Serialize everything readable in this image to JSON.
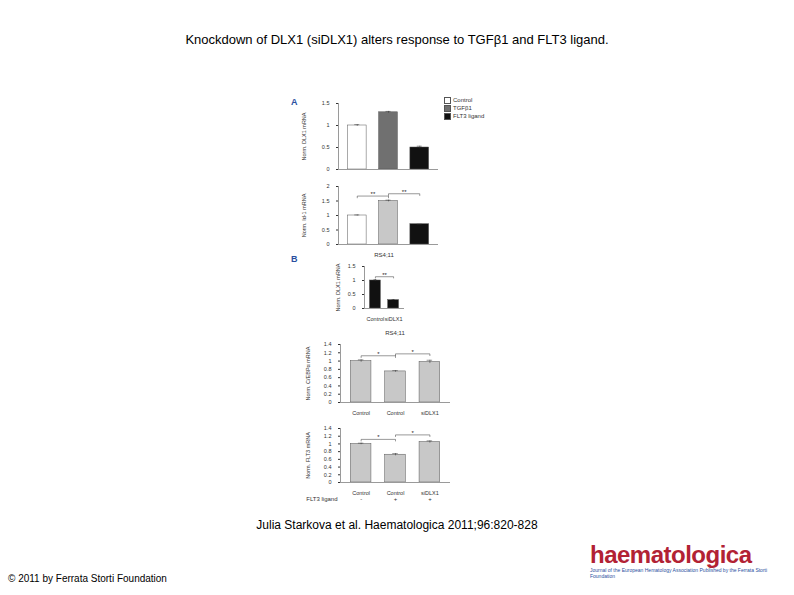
{
  "title": "Knockdown of DLX1 (siDLX1) alters response to TGFβ1 and FLT3 ligand.",
  "citation": "Julia Starkova et al. Haematologica 2011;96:820-828",
  "copyright": "© 2011 by Ferrata Storti Foundation",
  "logo": {
    "name": "haematologica",
    "tagline": "Journal of the European Hematology Association Published by the Ferrata Storti Foundation"
  },
  "chart_data": [
    {
      "type": "bar",
      "panel": "A",
      "y_label": "Norm. DLX1 mRNA",
      "categories": [
        "Control",
        "TGFβ1",
        "FLT3 ligand"
      ],
      "values": [
        1.0,
        1.3,
        0.5
      ],
      "errors": [
        0.02,
        0.02,
        0.03
      ],
      "colors": [
        "#ffffff",
        "#707070",
        "#111111"
      ],
      "ylim": [
        0,
        1.5
      ],
      "yticks": [
        0,
        0.5,
        1,
        1.5
      ],
      "legend": "top-right",
      "tick_labels": "y"
    },
    {
      "type": "bar",
      "y_label": "Norm. Id-1 mRNA",
      "categories": [
        "Control",
        "TGFβ1",
        "FLT3 ligand"
      ],
      "values": [
        1.0,
        1.5,
        0.7
      ],
      "errors": [
        0.02,
        0.03,
        0.0
      ],
      "colors": [
        "#ffffff",
        "#c8c8c8",
        "#111111"
      ],
      "ylim": [
        0,
        2
      ],
      "yticks": [
        0,
        0.5,
        1,
        1.5,
        2
      ],
      "annotations": [
        {
          "from": 0,
          "to": 1,
          "label": "**"
        },
        {
          "from": 1,
          "to": 2,
          "label": "**"
        }
      ],
      "tick_labels": "y"
    },
    {
      "type": "bar",
      "panel": "B",
      "title": "RS4;11",
      "y_label": "Norm. DLX1 mRNA",
      "categories": [
        "Control",
        "siDLX1"
      ],
      "values": [
        1.0,
        0.3
      ],
      "errors": [
        0.03,
        0.02
      ],
      "colors": [
        "#111111",
        "#111111"
      ],
      "ylim": [
        0,
        1.5
      ],
      "yticks": [
        0,
        0.5,
        1,
        1.5
      ],
      "annotations": [
        {
          "from": 0,
          "to": 1,
          "label": "**"
        }
      ]
    },
    {
      "type": "bar",
      "title": "RS4;11",
      "y_label": "Norm. C/EBPα mRNA",
      "categories": [
        "Control",
        "Control",
        "siDLX1"
      ],
      "values": [
        1.0,
        0.75,
        0.98
      ],
      "errors": [
        0.03,
        0.02,
        0.04
      ],
      "colors": [
        "#c8c8c8",
        "#c8c8c8",
        "#c8c8c8"
      ],
      "ylim": [
        0,
        1.4
      ],
      "yticks": [
        0,
        0.2,
        0.4,
        0.6,
        0.8,
        1,
        1.2,
        1.4
      ],
      "annotations": [
        {
          "from": 0,
          "to": 1,
          "label": "*"
        },
        {
          "from": 1,
          "to": 2,
          "label": "*"
        }
      ]
    },
    {
      "type": "bar",
      "y_label": "Norm. FLT3 mRNA",
      "categories": [
        "Control",
        "Control",
        "siDLX1"
      ],
      "values": [
        1.0,
        0.72,
        1.05
      ],
      "errors": [
        0.02,
        0.03,
        0.03
      ],
      "colors": [
        "#c8c8c8",
        "#c8c8c8",
        "#c8c8c8"
      ],
      "ylim": [
        0,
        1.4
      ],
      "yticks": [
        0,
        0.2,
        0.4,
        0.6,
        0.8,
        1,
        1.2,
        1.4
      ],
      "annotations": [
        {
          "from": 0,
          "to": 1,
          "label": "*"
        },
        {
          "from": 1,
          "to": 2,
          "label": "*"
        }
      ],
      "treatment": {
        "label": "FLT3 ligand",
        "values": [
          "-",
          "+",
          "+"
        ]
      }
    }
  ]
}
